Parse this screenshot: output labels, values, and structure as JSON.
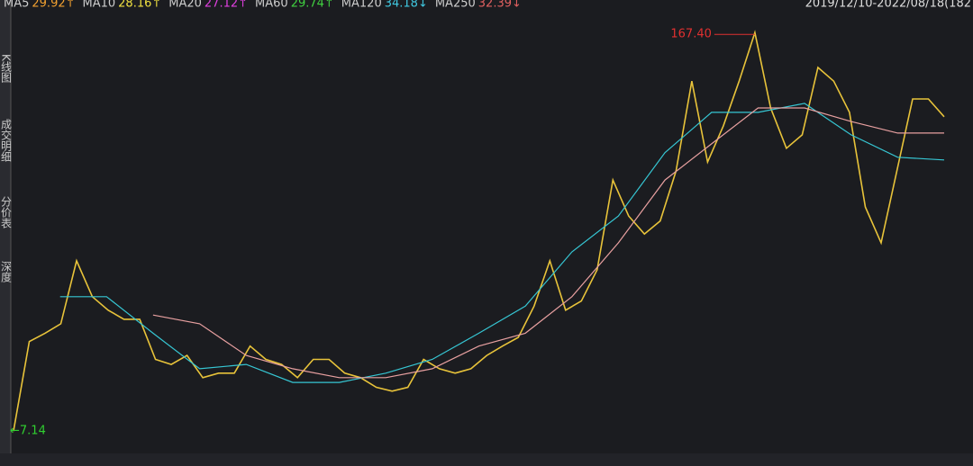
{
  "chart_data": {
    "type": "line",
    "header_items": [
      {
        "text": "MA5",
        "value": "29.92↑",
        "color": "#f0a030"
      },
      {
        "text": "MA10",
        "value": "28.16↑",
        "color": "#f0e040"
      },
      {
        "text": "MA20",
        "value": "27.12↑",
        "color": "#e040e0"
      },
      {
        "text": "MA60",
        "value": "29.74↑",
        "color": "#40d040"
      },
      {
        "text": "MA120",
        "value": "34.18↓",
        "color": "#40c8e0"
      },
      {
        "text": "MA250",
        "value": "32.39↓",
        "color": "#e06060"
      }
    ],
    "date_range": "2019/12/10-2022/08/18(182",
    "tabs": [
      "K线图",
      "成交明细",
      "分价表",
      "深度"
    ],
    "annotations": [
      {
        "text": "167.40",
        "value": 167.4,
        "color": "#e03030"
      },
      {
        "text": "←7.14",
        "value": 7.14,
        "color": "#30d030"
      }
    ],
    "ylim": [
      7,
      175
    ],
    "log_scale": true,
    "series": [
      {
        "name": "price",
        "color": "#e8c33a",
        "values": [
          7.14,
          14.5,
          15.5,
          16.7,
          27.5,
          20.7,
          18.6,
          17.3,
          17.3,
          12.6,
          12.1,
          13.0,
          10.9,
          11.3,
          11.3,
          14.0,
          12.6,
          12.1,
          10.9,
          12.6,
          12.6,
          11.3,
          10.9,
          10.1,
          9.8,
          10.1,
          12.6,
          11.7,
          11.3,
          11.7,
          13.0,
          14.0,
          15.0,
          19.2,
          27.5,
          18.6,
          20.0,
          25.6,
          52.1,
          39.2,
          34.0,
          37.7,
          56.0,
          114,
          60.1,
          80,
          114,
          167.4,
          92.2,
          67,
          74.5,
          127,
          114,
          89,
          42.1,
          31.7,
          56.0,
          99,
          99,
          86
        ]
      },
      {
        "name": "MA60",
        "color": "#36c6d3",
        "values": [
          null,
          20.7,
          20.7,
          15.5,
          11.7,
          12.1,
          10.5,
          10.5,
          11.3,
          12.6,
          15.5,
          19.2,
          29.5,
          39.2,
          64.7,
          89,
          89,
          95.6,
          74.5,
          62.4,
          61.1
        ]
      },
      {
        "name": "MA250",
        "color": "#e8a0a0",
        "values": [
          null,
          null,
          null,
          17.9,
          16.7,
          13.0,
          11.7,
          10.9,
          10.9,
          11.7,
          14.0,
          15.5,
          20.7,
          31.7,
          52.1,
          69.4,
          92.2,
          92.2,
          82.8,
          75.6,
          75.6
        ]
      }
    ]
  }
}
